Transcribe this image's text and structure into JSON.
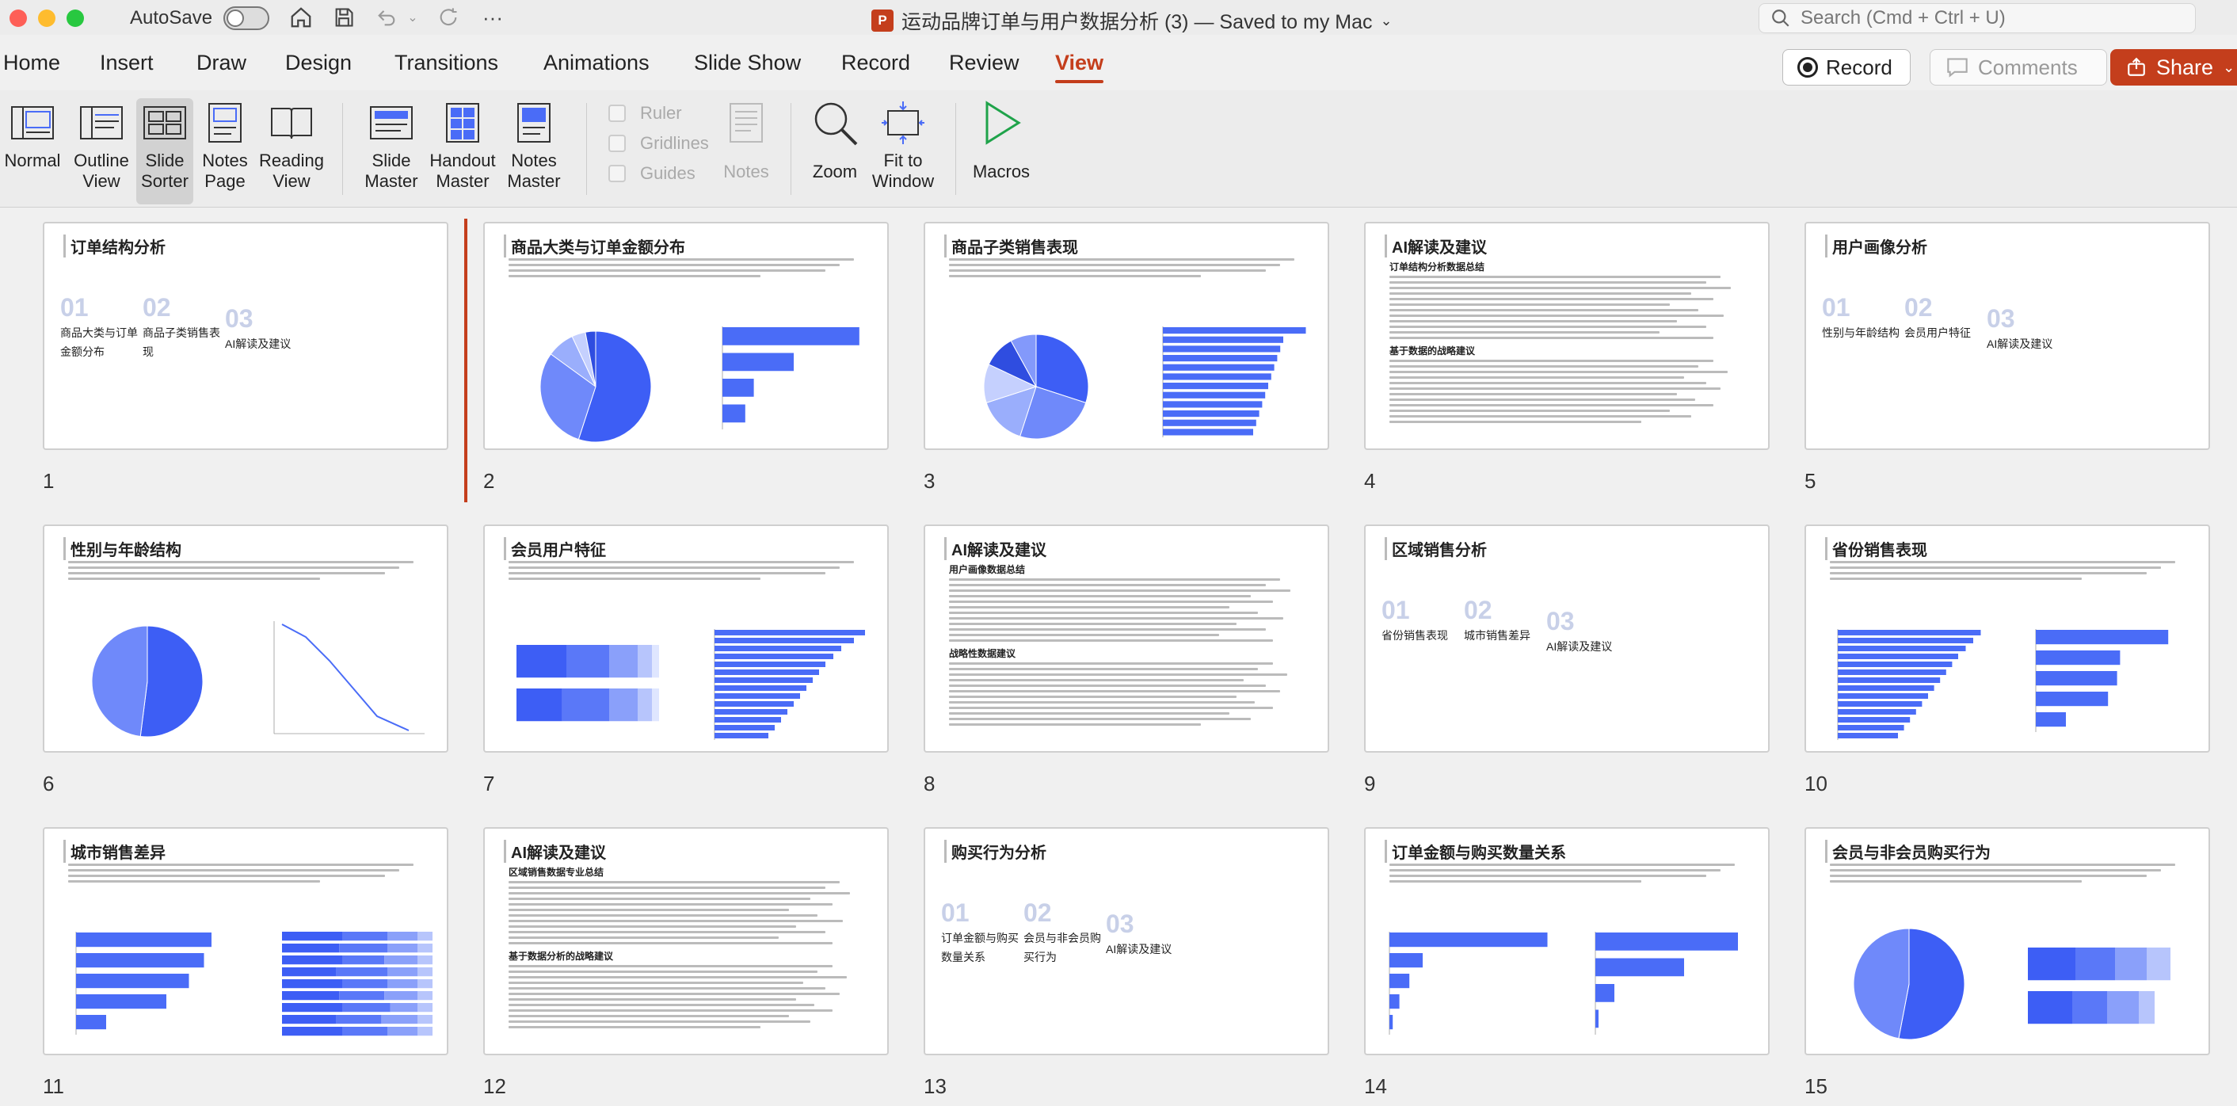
{
  "titlebar": {
    "autosave_label": "AutoSave",
    "doc_title": "运动品牌订单与用户数据分析 (3) — Saved to my Mac",
    "ppt_logo": "P",
    "search_placeholder": "Search (Cmd + Ctrl + U)"
  },
  "tabs": [
    "Home",
    "Insert",
    "Draw",
    "Design",
    "Transitions",
    "Animations",
    "Slide Show",
    "Record",
    "Review",
    "View"
  ],
  "active_tab": "View",
  "actions": {
    "record": "Record",
    "comments": "Comments",
    "share": "Share"
  },
  "ribbon": {
    "normal": "Normal",
    "outline_view": [
      "Outline",
      "View"
    ],
    "slide_sorter": [
      "Slide",
      "Sorter"
    ],
    "notes_page": [
      "Notes",
      "Page"
    ],
    "reading_view": [
      "Reading",
      "View"
    ],
    "slide_master": [
      "Slide",
      "Master"
    ],
    "handout_master": [
      "Handout",
      "Master"
    ],
    "notes_master": [
      "Notes",
      "Master"
    ],
    "ruler": "Ruler",
    "gridlines": "Gridlines",
    "guides": "Guides",
    "notes": "Notes",
    "zoom": "Zoom",
    "fit_to_window": [
      "Fit to",
      "Window"
    ],
    "macros": "Macros"
  },
  "colors": {
    "accent": "#c43e1c",
    "chart_blue": "#4a6cf7",
    "chart_light": "#a9b8ff"
  },
  "slides": [
    {
      "num": "1",
      "title": "订单结构分析",
      "sections": [
        {
          "n": "01",
          "label": "商品大类与订单金额分布"
        },
        {
          "n": "02",
          "label": "商品子类销售表现"
        },
        {
          "n": "03",
          "label": "AI解读及建议"
        }
      ]
    },
    {
      "num": "2",
      "title": "商品大类与订单金额分布"
    },
    {
      "num": "3",
      "title": "商品子类销售表现"
    },
    {
      "num": "4",
      "title": "AI解读及建议",
      "sub1": "订单结构分析数据总结",
      "sub2": "基于数据的战略建议"
    },
    {
      "num": "5",
      "title": "用户画像分析",
      "sections": [
        {
          "n": "01",
          "label": "性别与年龄结构"
        },
        {
          "n": "02",
          "label": "会员用户特征"
        },
        {
          "n": "03",
          "label": "AI解读及建议"
        }
      ]
    },
    {
      "num": "6",
      "title": "性别与年龄结构"
    },
    {
      "num": "7",
      "title": "会员用户特征"
    },
    {
      "num": "8",
      "title": "AI解读及建议",
      "sub1": "用户画像数据总结",
      "sub2": "战略性数据建议"
    },
    {
      "num": "9",
      "title": "区域销售分析",
      "sections": [
        {
          "n": "01",
          "label": "省份销售表现"
        },
        {
          "n": "02",
          "label": "城市销售差异"
        },
        {
          "n": "03",
          "label": "AI解读及建议"
        }
      ]
    },
    {
      "num": "10",
      "title": "省份销售表现"
    },
    {
      "num": "11",
      "title": "城市销售差异"
    },
    {
      "num": "12",
      "title": "AI解读及建议",
      "sub1": "区域销售数据专业总结",
      "sub2": "基于数据分析的战略建议"
    },
    {
      "num": "13",
      "title": "购买行为分析",
      "sections": [
        {
          "n": "01",
          "label": "订单金额与购买数量关系"
        },
        {
          "n": "02",
          "label": "会员与非会员购买行为"
        },
        {
          "n": "03",
          "label": "AI解读及建议"
        }
      ]
    },
    {
      "num": "14",
      "title": "订单金额与购买数量关系"
    },
    {
      "num": "15",
      "title": "会员与非会员购买行为"
    }
  ]
}
